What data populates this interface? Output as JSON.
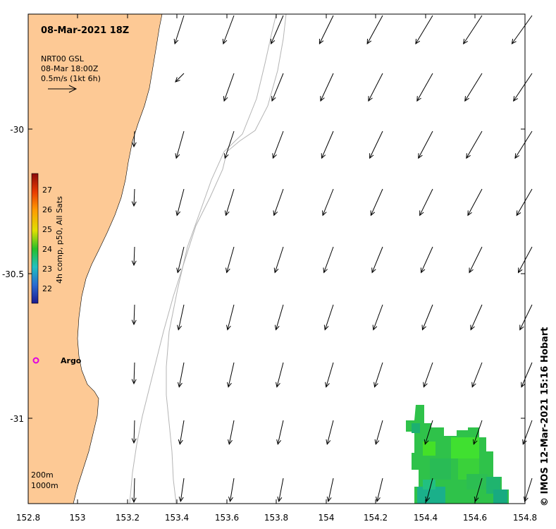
{
  "map": {
    "title": "08-Mar-2021 18Z",
    "legend": {
      "line1": "NRT00 GSL",
      "line2": "08-Mar 18:00Z",
      "line3": "0.5m/s (1kt 6h)"
    },
    "colorbar": {
      "label": "4h comp, p50, All Sats",
      "ticks": [
        "22",
        "23",
        "24",
        "25",
        "26",
        "27"
      ]
    },
    "argo_label": "Argo",
    "depth_labels": [
      "200m",
      "1000m"
    ],
    "credit": "© IMOS 12-Mar-2021 15:16 Hobart",
    "x_ticks": [
      "152.8",
      "153",
      "153.2",
      "153.4",
      "153.6",
      "153.8",
      "154",
      "154.2",
      "154.4",
      "154.6",
      "154.8"
    ],
    "y_ticks": [
      "-30",
      "-30.5",
      "-31"
    ],
    "colors": {
      "land": "#fdc995",
      "isobath": "#b4b4b4",
      "sst_green": "#33cc33",
      "argo_marker": "#e000e0"
    }
  }
}
